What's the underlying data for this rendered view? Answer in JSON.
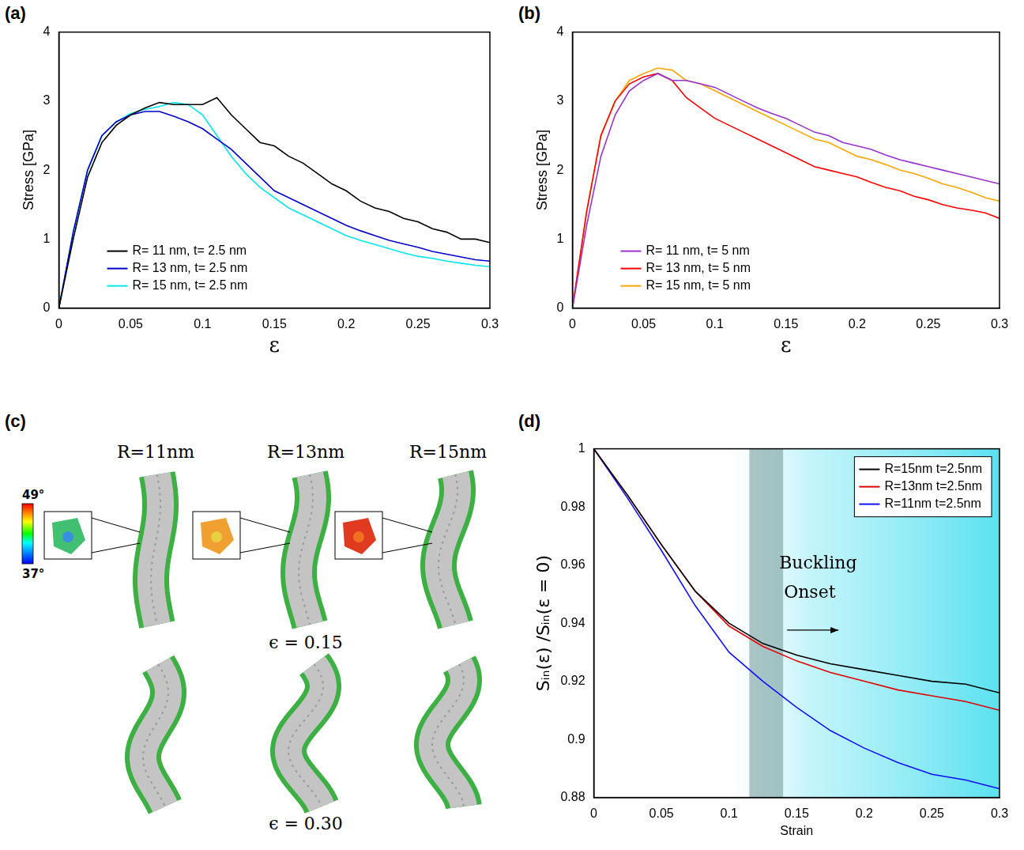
{
  "chart_data": [
    {
      "panel": "(a)",
      "type": "line",
      "x_label": "ε",
      "y_label": "Stress [GPa]",
      "xlim": [
        0,
        0.3
      ],
      "xticks": [
        0,
        0.05,
        0.1,
        0.15,
        0.2,
        0.25,
        0.3
      ],
      "ylim": [
        0,
        4
      ],
      "yticks": [
        0,
        1,
        2,
        3,
        4
      ],
      "grid": false,
      "legend": "lower left",
      "x": [
        0,
        0.01,
        0.02,
        0.03,
        0.04,
        0.05,
        0.06,
        0.07,
        0.08,
        0.09,
        0.1,
        0.11,
        0.12,
        0.13,
        0.14,
        0.15,
        0.16,
        0.17,
        0.18,
        0.19,
        0.2,
        0.21,
        0.22,
        0.23,
        0.24,
        0.25,
        0.26,
        0.27,
        0.28,
        0.29,
        0.3
      ],
      "series": [
        {
          "name": "R= 11 nm, t= 2.5 nm",
          "color": "#000000",
          "values": [
            0,
            1.0,
            1.9,
            2.4,
            2.65,
            2.8,
            2.9,
            2.98,
            2.95,
            2.95,
            2.95,
            3.05,
            2.8,
            2.6,
            2.4,
            2.35,
            2.2,
            2.1,
            1.95,
            1.8,
            1.7,
            1.55,
            1.45,
            1.4,
            1.3,
            1.25,
            1.15,
            1.1,
            1.0,
            1.0,
            0.95
          ]
        },
        {
          "name": "R= 13 nm, t= 2.5 nm",
          "color": "#0000cd",
          "values": [
            0,
            1.1,
            2.0,
            2.5,
            2.7,
            2.8,
            2.85,
            2.85,
            2.78,
            2.7,
            2.6,
            2.45,
            2.3,
            2.1,
            1.9,
            1.7,
            1.6,
            1.5,
            1.4,
            1.3,
            1.2,
            1.12,
            1.05,
            0.98,
            0.93,
            0.88,
            0.82,
            0.78,
            0.74,
            0.7,
            0.68
          ]
        },
        {
          "name": "R= 15 nm, t= 2.5 nm",
          "color": "#00e5ee",
          "values": [
            0,
            1.1,
            2.0,
            2.5,
            2.7,
            2.82,
            2.88,
            2.92,
            2.98,
            2.95,
            2.8,
            2.5,
            2.2,
            1.95,
            1.75,
            1.6,
            1.45,
            1.35,
            1.25,
            1.15,
            1.05,
            0.98,
            0.92,
            0.86,
            0.8,
            0.75,
            0.72,
            0.68,
            0.65,
            0.62,
            0.6
          ]
        }
      ]
    },
    {
      "panel": "(b)",
      "type": "line",
      "x_label": "ε",
      "y_label": "Stress [GPa]",
      "xlim": [
        0,
        0.3
      ],
      "xticks": [
        0,
        0.05,
        0.1,
        0.15,
        0.2,
        0.25,
        0.3
      ],
      "ylim": [
        0,
        4
      ],
      "yticks": [
        0,
        1,
        2,
        3,
        4
      ],
      "grid": false,
      "legend": "lower left",
      "x": [
        0,
        0.01,
        0.02,
        0.03,
        0.04,
        0.05,
        0.06,
        0.07,
        0.08,
        0.09,
        0.1,
        0.11,
        0.12,
        0.13,
        0.14,
        0.15,
        0.16,
        0.17,
        0.18,
        0.19,
        0.2,
        0.21,
        0.22,
        0.23,
        0.24,
        0.25,
        0.26,
        0.27,
        0.28,
        0.29,
        0.3
      ],
      "series": [
        {
          "name": "R= 11 nm, t= 5 nm",
          "color": "#9932cc",
          "values": [
            0,
            1.2,
            2.2,
            2.8,
            3.15,
            3.3,
            3.4,
            3.3,
            3.3,
            3.25,
            3.2,
            3.1,
            3.0,
            2.9,
            2.82,
            2.75,
            2.65,
            2.55,
            2.5,
            2.4,
            2.35,
            2.3,
            2.22,
            2.15,
            2.1,
            2.05,
            2.0,
            1.95,
            1.9,
            1.85,
            1.8
          ]
        },
        {
          "name": "R= 13 nm, t= 5 nm",
          "color": "#ff0000",
          "values": [
            0,
            1.4,
            2.5,
            3.0,
            3.25,
            3.35,
            3.4,
            3.3,
            3.05,
            2.9,
            2.75,
            2.65,
            2.55,
            2.45,
            2.35,
            2.25,
            2.15,
            2.05,
            2.0,
            1.95,
            1.9,
            1.82,
            1.75,
            1.7,
            1.62,
            1.57,
            1.5,
            1.45,
            1.42,
            1.38,
            1.3
          ]
        },
        {
          "name": "R= 15 nm, t= 5 nm",
          "color": "#ffa500",
          "values": [
            0,
            1.4,
            2.5,
            3.0,
            3.3,
            3.4,
            3.48,
            3.45,
            3.3,
            3.25,
            3.15,
            3.05,
            2.95,
            2.85,
            2.75,
            2.65,
            2.55,
            2.45,
            2.4,
            2.3,
            2.2,
            2.15,
            2.08,
            2.0,
            1.95,
            1.88,
            1.8,
            1.75,
            1.68,
            1.6,
            1.55
          ]
        }
      ]
    },
    {
      "panel": "(d)",
      "type": "line",
      "x_label": "Strain",
      "y_label": "Sᵢₙ(ε) /Sᵢₙ(ε = 0)",
      "xlim": [
        0,
        0.3
      ],
      "xticks": [
        0,
        0.05,
        0.1,
        0.15,
        0.2,
        0.25,
        0.3
      ],
      "ylim": [
        0.88,
        1
      ],
      "yticks": [
        0.88,
        0.9,
        0.92,
        0.94,
        0.96,
        0.98,
        1
      ],
      "grid": false,
      "legend": "upper right",
      "annotation": "Buckling Onset",
      "buckling_band": [
        0.115,
        0.14
      ],
      "shading_from": 0.1,
      "x": [
        0,
        0.025,
        0.05,
        0.075,
        0.1,
        0.125,
        0.15,
        0.175,
        0.2,
        0.225,
        0.25,
        0.275,
        0.3
      ],
      "series": [
        {
          "name": "R=15nm t=2.5nm",
          "color": "#000000",
          "values": [
            1,
            0.984,
            0.967,
            0.951,
            0.94,
            0.933,
            0.929,
            0.926,
            0.924,
            0.922,
            0.92,
            0.919,
            0.916
          ]
        },
        {
          "name": "R=13nm t=2.5nm",
          "color": "#e00000",
          "values": [
            1,
            0.984,
            0.967,
            0.951,
            0.939,
            0.932,
            0.927,
            0.923,
            0.92,
            0.917,
            0.915,
            0.913,
            0.91
          ]
        },
        {
          "name": "R=11nm t=2.5nm",
          "color": "#1010ff",
          "values": [
            1,
            0.983,
            0.965,
            0.946,
            0.93,
            0.92,
            0.911,
            0.903,
            0.897,
            0.892,
            0.888,
            0.886,
            0.883
          ]
        }
      ]
    }
  ],
  "panel_c": {
    "panel": "(c)",
    "columns": [
      "R=11nm",
      "R=13nm",
      "R=15nm"
    ],
    "rows": [
      "ϵ = 0.15",
      "ϵ = 0.30"
    ],
    "colorbar": {
      "range": [
        37,
        49
      ],
      "ticks": [
        {
          "value": 37,
          "label": "37°"
        },
        {
          "value": 49,
          "label": "49°"
        }
      ]
    }
  }
}
